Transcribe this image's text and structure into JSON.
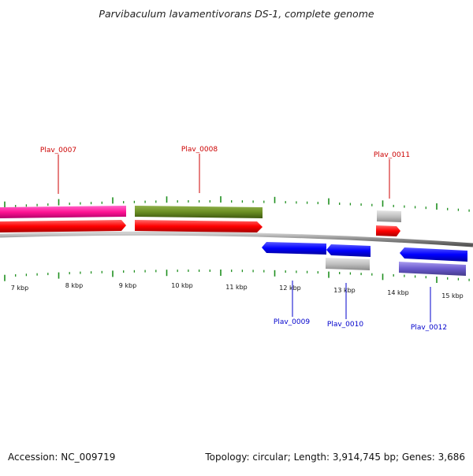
{
  "title": "Parvibaculum lavamentivorans DS-1, complete genome",
  "footer": {
    "accession": "Accession: NC_009719",
    "summary": "Topology: circular; Length: 3,914,745 bp; Genes: 3,686"
  },
  "colors": {
    "label_upper": "#cc0000",
    "label_lower": "#0000cc",
    "tick": "#1f8f1f",
    "backbone": "#808080"
  },
  "ruler": {
    "labels": [
      "7 kbp",
      "8 kbp",
      "9 kbp",
      "10 kbp",
      "11 kbp",
      "12 kbp",
      "13 kbp",
      "14 kbp",
      "15 kbp"
    ]
  },
  "genes": {
    "forward": [
      "Plav_0007",
      "Plav_0008",
      "Plav_0011"
    ],
    "reverse": [
      "Plav_0009",
      "Plav_0010",
      "Plav_0012"
    ]
  }
}
